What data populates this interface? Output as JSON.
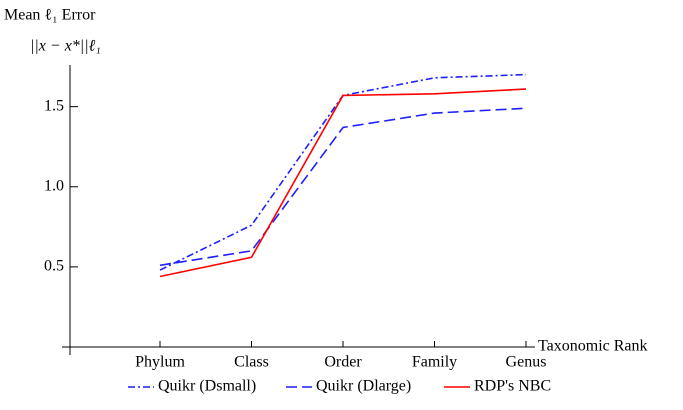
{
  "chart_data": {
    "type": "line",
    "y_label_line1": "Mean ℓ₁ Error",
    "y_label_line2": "||x − x*||ℓ₁",
    "x_label": "Taxonomic Rank",
    "categories": [
      "Phylum",
      "Class",
      "Order",
      "Family",
      "Genus"
    ],
    "series": [
      {
        "name": "Quikr (Dsmall)",
        "color": "#1f1fff",
        "dash": "dash-dot",
        "values": [
          0.48,
          0.76,
          1.57,
          1.68,
          1.7
        ]
      },
      {
        "name": "Quikr (Dlarge)",
        "color": "#1f1fff",
        "dash": "dashed",
        "values": [
          0.51,
          0.6,
          1.37,
          1.46,
          1.49
        ]
      },
      {
        "name": "RDP's NBC",
        "color": "#ff0000",
        "dash": "solid",
        "values": [
          0.44,
          0.56,
          1.57,
          1.58,
          1.61
        ]
      }
    ],
    "ylim": [
      0,
      1.76
    ],
    "yticks": [
      {
        "value": 0.5,
        "label": "0.5"
      },
      {
        "value": 1.0,
        "label": "1.0"
      },
      {
        "value": 1.5,
        "label": "1.5"
      }
    ],
    "legend": "bottom"
  }
}
